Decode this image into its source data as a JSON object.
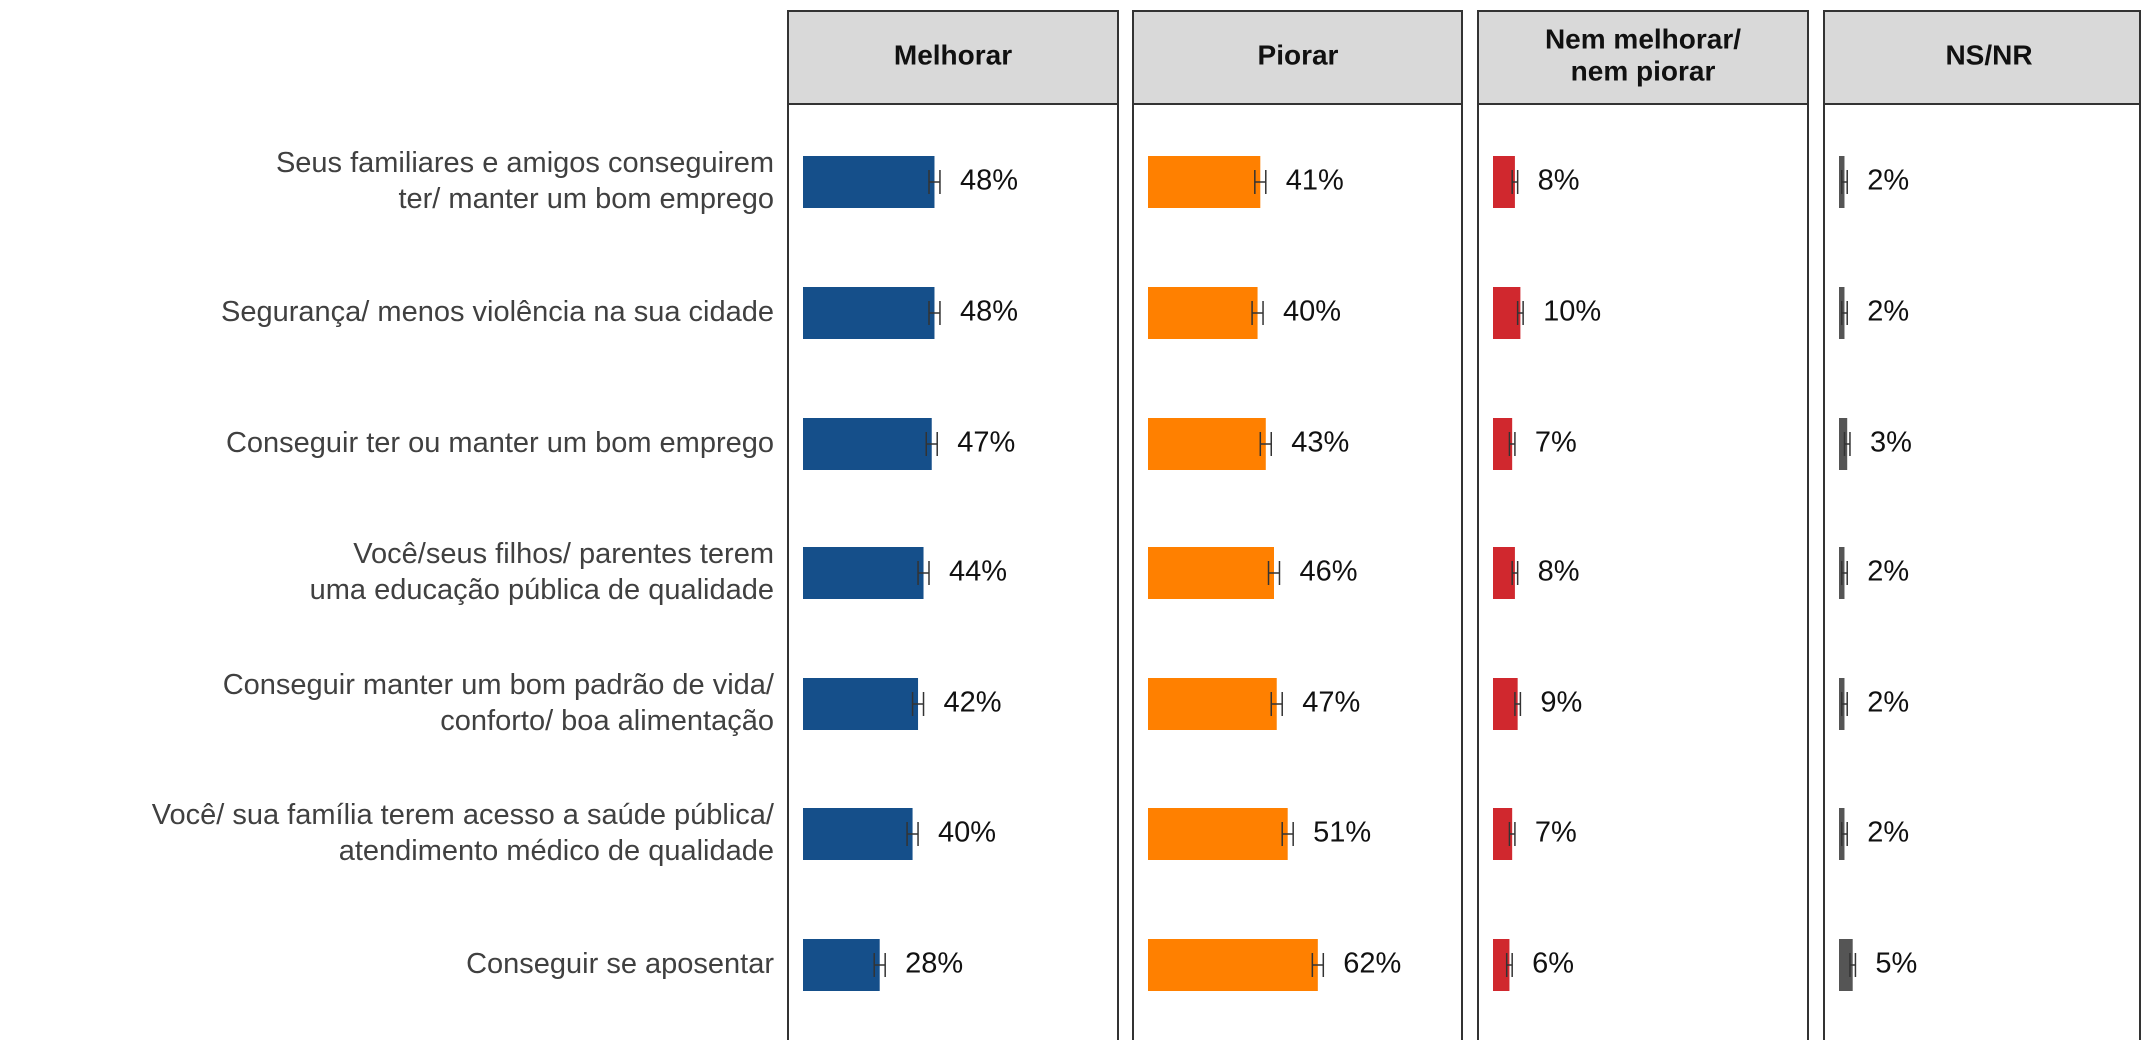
{
  "chart_data": {
    "type": "faceted-bar",
    "categories": [
      "Seus familiares e amigos conseguirem\nter/ manter um bom emprego",
      "Segurança/ menos violência na sua cidade",
      "Conseguir ter ou manter um bom emprego",
      "Você/seus filhos/ parentes terem\numa educação pública de qualidade",
      "Conseguir manter um bom padrão de vida/\nconforto/ boa alimentação",
      "Você/ sua família terem acesso a saúde pública/\natendimento médico de qualidade",
      "Conseguir se aposentar"
    ],
    "xlim": [
      0,
      115
    ],
    "series": [
      {
        "name": "Melhorar",
        "color": "#154f8a",
        "values": [
          48,
          48,
          47,
          44,
          42,
          40,
          28
        ],
        "errors": [
          2,
          2,
          2,
          2,
          2,
          2,
          2
        ],
        "value_labels": [
          "48%",
          "48%",
          "47%",
          "44%",
          "42%",
          "40%",
          "28%"
        ]
      },
      {
        "name": "Piorar",
        "color": "#ff8000",
        "values": [
          41,
          40,
          43,
          46,
          47,
          51,
          62
        ],
        "errors": [
          2,
          2,
          2,
          2,
          2,
          2,
          2
        ],
        "value_labels": [
          "41%",
          "40%",
          "43%",
          "46%",
          "47%",
          "51%",
          "62%"
        ]
      },
      {
        "name": "Nem melhorar/\nnem piorar",
        "color": "#d0282e",
        "values": [
          8,
          10,
          7,
          8,
          9,
          7,
          6
        ],
        "errors": [
          1,
          1,
          1,
          1,
          1,
          1,
          1
        ],
        "value_labels": [
          "8%",
          "10%",
          "7%",
          "8%",
          "9%",
          "7%",
          "6%"
        ]
      },
      {
        "name": "NS/NR",
        "color": "#555555",
        "values": [
          2,
          2,
          3,
          2,
          2,
          2,
          5
        ],
        "errors": [
          1,
          1,
          1,
          1,
          1,
          1,
          1
        ],
        "value_labels": [
          "2%",
          "2%",
          "3%",
          "2%",
          "2%",
          "2%",
          "5%"
        ]
      }
    ]
  }
}
